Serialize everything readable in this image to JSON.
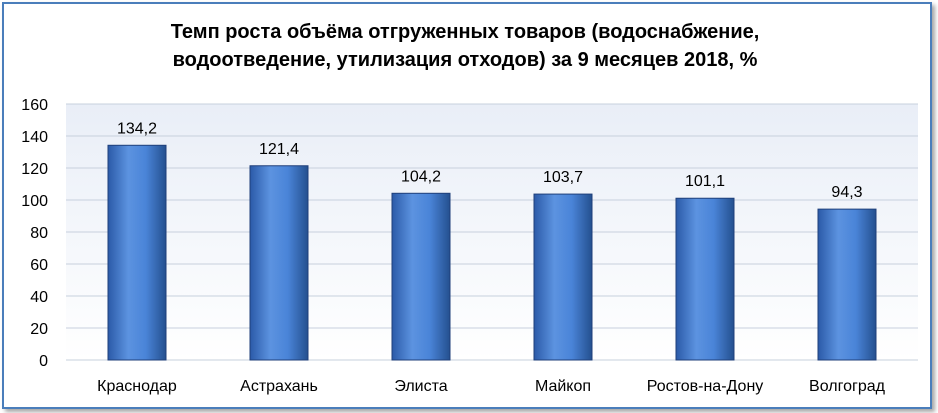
{
  "chart_data": {
    "type": "bar",
    "title_lines": [
      "Темп роста объёма отгруженных товаров (водоснабжение,",
      "водоотведение, утилизация отходов) за 9 месяцев 2018, %"
    ],
    "categories": [
      "Краснодар",
      "Астрахань",
      "Элиста",
      "Майкоп",
      "Ростов-на-Дону",
      "Волгоград"
    ],
    "values": [
      134.2,
      121.4,
      104.2,
      103.7,
      101.1,
      94.3
    ],
    "value_labels": [
      "134,2",
      "121,4",
      "104,2",
      "103,7",
      "101,1",
      "94,3"
    ],
    "ylim": [
      0,
      160
    ],
    "yticks": [
      0,
      20,
      40,
      60,
      80,
      100,
      120,
      140,
      160
    ],
    "grid": true,
    "legend": "none",
    "colors": {
      "bar_top": "#6ea3e8",
      "bar_mid": "#3f79d0",
      "bar_bottom": "#244f9a",
      "bar_stroke": "#1f3f7a",
      "plot_bg_top": "#e9eef7",
      "plot_bg_bottom": "#ffffff",
      "grid": "#c7d0dd",
      "frame": "#4a7ebb"
    }
  }
}
